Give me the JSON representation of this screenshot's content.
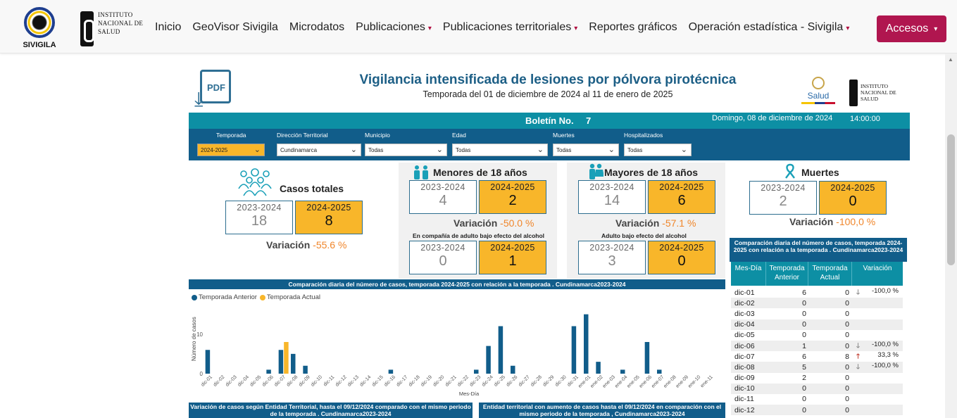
{
  "nav": {
    "logo_text": "SIVIGILA",
    "ins_lines": [
      "INSTITUTO",
      "NACIONAL DE",
      "SALUD"
    ],
    "links": [
      {
        "label": "Inicio",
        "dropdown": false
      },
      {
        "label": "GeoVisor Sivigila",
        "dropdown": false
      },
      {
        "label": "Microdatos",
        "dropdown": false
      },
      {
        "label": "Publicaciones",
        "dropdown": true
      },
      {
        "label": "Publicaciones territoriales",
        "dropdown": true
      },
      {
        "label": "Reportes gráficos",
        "dropdown": false
      },
      {
        "label": "Operación estadística - Sivigila",
        "dropdown": true
      }
    ],
    "accesos_label": "Accesos",
    "caret": "▾"
  },
  "report": {
    "pdf_label": "PDF",
    "title": "Vigilancia intensificada de lesiones por pólvora pirotécnica",
    "subtitle": "Temporada del 01 de diciembre de 2024 al 11 de enero de 2025",
    "salud_label": "Salud",
    "ins_lines": [
      "INSTITUTO",
      "NACIONAL DE",
      "SALUD"
    ],
    "boletin_label": "Boletín No.",
    "boletin_num": "7",
    "date": "Domingo, 08 de diciembre de 2024",
    "time": "14:00:00"
  },
  "filters": [
    {
      "label": "Temporada",
      "value": "2024-2025",
      "highlight": true
    },
    {
      "label": "Dirección Territorial",
      "value": "Cundinamarca",
      "highlight": false
    },
    {
      "label": "Municipio",
      "value": "Todas",
      "highlight": false
    },
    {
      "label": "Edad",
      "value": "Todas",
      "highlight": false
    },
    {
      "label": "Muertes",
      "value": "Todas",
      "highlight": false
    },
    {
      "label": "Hospitalizados",
      "value": "Todas",
      "highlight": false
    }
  ],
  "kpis": {
    "prev_label": "2023-2024",
    "cur_label": "2024-2025",
    "variacion_label": "Variación",
    "totales": {
      "title": "Casos totales",
      "prev": "18",
      "cur": "8",
      "var": "-55.6 %"
    },
    "menores": {
      "title": "Menores de 18 años",
      "prev": "4",
      "cur": "2",
      "var": "-50.0 %",
      "sub": "En compañía de adulto bajo efecto del alcohol",
      "sub_prev": "0",
      "sub_cur": "1"
    },
    "mayores": {
      "title": "Mayores de 18 años",
      "prev": "14",
      "cur": "6",
      "var": "57.1 %",
      "var_sign": "-",
      "sub": "Adulto bajo efecto del alcohol",
      "sub_prev": "3",
      "sub_cur": "0"
    },
    "muertes": {
      "title": "Muertes",
      "prev": "2",
      "cur": "0",
      "var": "-100,0 %"
    }
  },
  "colors": {
    "anterior": "#115d8a",
    "actual": "#f8b62a",
    "teal": "#0d8fa4"
  },
  "chart_data": {
    "type": "bar",
    "title": "Comparación diaria del número de casos, temporada 2024-2025 con relación a la temporada . Cundinamarca2023-2024",
    "xlabel": "Mes-Día",
    "ylabel": "Número de casos",
    "ylim": [
      0,
      16
    ],
    "yticks": [
      0,
      10
    ],
    "legend": [
      "Temporada Anterior",
      "Temporada Actual"
    ],
    "categories": [
      "dic-01",
      "dic-02",
      "dic-03",
      "dic-04",
      "dic-05",
      "dic-06",
      "dic-07",
      "dic-08",
      "dic-09",
      "dic-10",
      "dic-11",
      "dic-12",
      "dic-13",
      "dic-14",
      "dic-15",
      "dic-16",
      "dic-17",
      "dic-18",
      "dic-19",
      "dic-20",
      "dic-21",
      "dic-22",
      "dic-23",
      "dic-24",
      "dic-25",
      "dic-26",
      "dic-27",
      "dic-28",
      "dic-29",
      "dic-30",
      "dic-31",
      "ene-01",
      "ene-02",
      "ene-03",
      "ene-04",
      "ene-05",
      "ene-06",
      "ene-07",
      "ene-08",
      "ene-09",
      "ene-10",
      "ene-11"
    ],
    "series": [
      {
        "name": "Temporada Anterior",
        "values": [
          6,
          0,
          0,
          0,
          0,
          1,
          6,
          5,
          2,
          0,
          0,
          0,
          0,
          0,
          0,
          1,
          0,
          0,
          0,
          0,
          0,
          0,
          1,
          7,
          12,
          2,
          0,
          0,
          0,
          0,
          12,
          15,
          3,
          0,
          1,
          0,
          8,
          1,
          0,
          0,
          0,
          0
        ]
      },
      {
        "name": "Temporada Actual",
        "values": [
          0,
          0,
          0,
          0,
          0,
          0,
          8,
          0,
          0,
          0,
          0,
          0,
          0,
          0,
          0,
          0,
          0,
          0,
          0,
          0,
          0,
          0,
          0,
          0,
          0,
          0,
          0,
          0,
          0,
          0,
          0,
          0,
          0,
          0,
          0,
          0,
          0,
          0,
          0,
          0,
          0,
          0
        ]
      }
    ]
  },
  "bottom": {
    "left_title": "Variación de casos según Entidad Territorial, hasta el 09/12/2024 comparado con el mismo periodo de la temporada . Cundinamarca2023-2024",
    "right_title": "Entidad territorial con aumento de casos hasta el 09/12/2024 en comparación con el mismo periodo de la temporada , Cundinamarca2023-2024"
  },
  "table": {
    "title": "Comparación diaria del número de casos, temporada 2024-2025 con relación a la temporada . Cundinamarca2023-2024",
    "headers": [
      "Mes-Día",
      "Temporada Anterior",
      "Temporada Actual",
      "Variación"
    ],
    "rows": [
      {
        "day": "dic-01",
        "prev": "6",
        "cur": "0",
        "arrow": "down",
        "var": "-100,0 %"
      },
      {
        "day": "dic-02",
        "prev": "0",
        "cur": "0",
        "arrow": "",
        "var": ""
      },
      {
        "day": "dic-03",
        "prev": "0",
        "cur": "0",
        "arrow": "",
        "var": ""
      },
      {
        "day": "dic-04",
        "prev": "0",
        "cur": "0",
        "arrow": "",
        "var": ""
      },
      {
        "day": "dic-05",
        "prev": "0",
        "cur": "0",
        "arrow": "",
        "var": ""
      },
      {
        "day": "dic-06",
        "prev": "1",
        "cur": "0",
        "arrow": "down",
        "var": "-100,0 %"
      },
      {
        "day": "dic-07",
        "prev": "6",
        "cur": "8",
        "arrow": "up",
        "var": "33,3 %"
      },
      {
        "day": "dic-08",
        "prev": "5",
        "cur": "0",
        "arrow": "down",
        "var": "-100,0 %"
      },
      {
        "day": "dic-09",
        "prev": "2",
        "cur": "0",
        "arrow": "",
        "var": ""
      },
      {
        "day": "dic-10",
        "prev": "0",
        "cur": "0",
        "arrow": "",
        "var": ""
      },
      {
        "day": "dic-11",
        "prev": "0",
        "cur": "0",
        "arrow": "",
        "var": ""
      },
      {
        "day": "dic-12",
        "prev": "0",
        "cur": "0",
        "arrow": "",
        "var": ""
      }
    ]
  }
}
